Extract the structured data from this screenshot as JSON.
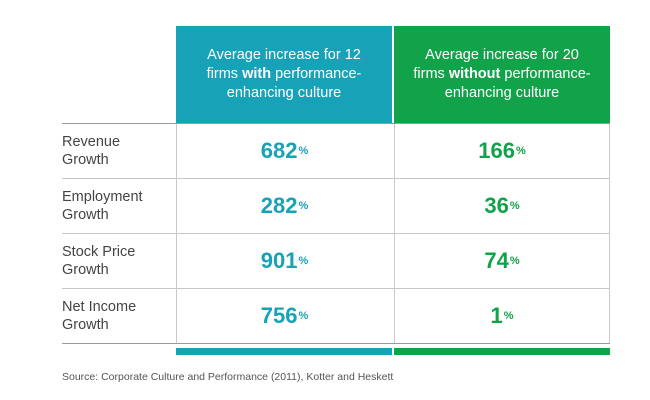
{
  "chart_data": {
    "type": "table",
    "columns": [
      {
        "header_pre": "Average increase for 12 firms ",
        "header_bold": "with",
        "header_post": " performance-enhancing culture",
        "color": "#17a2b8"
      },
      {
        "header_pre": "Average increase for 20 firms ",
        "header_bold": "without",
        "header_post": " performance-enhancing culture",
        "color": "#12a24a"
      }
    ],
    "rows": [
      {
        "label_line1": "Revenue",
        "label_line2": "Growth",
        "with": "682",
        "without": "166"
      },
      {
        "label_line1": "Employment",
        "label_line2": "Growth",
        "with": "282",
        "without": "36"
      },
      {
        "label_line1": "Stock Price",
        "label_line2": "Growth",
        "with": "901",
        "without": "74"
      },
      {
        "label_line1": "Net Income",
        "label_line2": "Growth",
        "with": "756",
        "without": "1"
      }
    ],
    "unit": "%",
    "source": "Source: Corporate Culture and Performance (2011), Kotter and Heskett"
  }
}
